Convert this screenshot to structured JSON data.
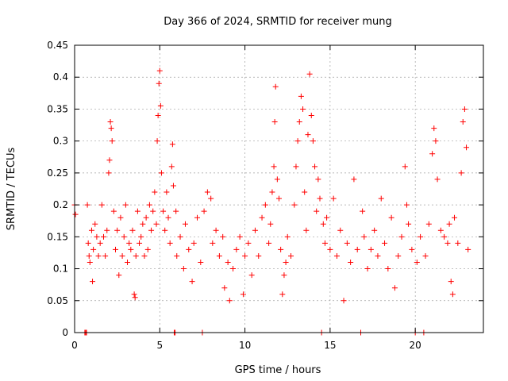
{
  "chart_data": {
    "type": "scatter",
    "title": "Day 366 of 2024, SRMTID for receiver mung",
    "xlabel": "GPS time / hours",
    "ylabel": "SRMTID / TECUs",
    "xlim": [
      0,
      24
    ],
    "ylim": [
      0,
      0.45
    ],
    "x_ticks": [
      0,
      5,
      10,
      15,
      20
    ],
    "x_tick_labels": [
      "0",
      "5",
      "10",
      "15",
      "20"
    ],
    "y_ticks": [
      0,
      0.05,
      0.1,
      0.15,
      0.2,
      0.25,
      0.3,
      0.35,
      0.4,
      0.45
    ],
    "y_tick_labels": [
      "0",
      "0.05",
      "0.1",
      "0.15",
      "0.2",
      "0.25",
      "0.3",
      "0.35",
      "0.4",
      "0.45"
    ],
    "grid": true,
    "marker": "+",
    "series_color": "#ff0000",
    "series": [
      {
        "name": "SRMTID",
        "points": [
          [
            0.0,
            0.2
          ],
          [
            0.05,
            0.185
          ],
          [
            0.6,
            0.0
          ],
          [
            0.65,
            0.0
          ],
          [
            0.7,
            0.0
          ],
          [
            0.75,
            0.2
          ],
          [
            0.8,
            0.14
          ],
          [
            0.85,
            0.12
          ],
          [
            0.9,
            0.11
          ],
          [
            1.0,
            0.16
          ],
          [
            1.05,
            0.08
          ],
          [
            1.1,
            0.13
          ],
          [
            1.2,
            0.17
          ],
          [
            1.3,
            0.15
          ],
          [
            1.4,
            0.12
          ],
          [
            1.5,
            0.14
          ],
          [
            1.6,
            0.2
          ],
          [
            1.7,
            0.15
          ],
          [
            1.8,
            0.12
          ],
          [
            1.9,
            0.16
          ],
          [
            2.0,
            0.25
          ],
          [
            2.05,
            0.27
          ],
          [
            2.1,
            0.33
          ],
          [
            2.15,
            0.32
          ],
          [
            2.2,
            0.3
          ],
          [
            2.3,
            0.19
          ],
          [
            2.4,
            0.13
          ],
          [
            2.5,
            0.16
          ],
          [
            2.6,
            0.09
          ],
          [
            2.7,
            0.18
          ],
          [
            2.8,
            0.12
          ],
          [
            2.9,
            0.15
          ],
          [
            3.0,
            0.2
          ],
          [
            3.1,
            0.11
          ],
          [
            3.2,
            0.14
          ],
          [
            3.3,
            0.13
          ],
          [
            3.4,
            0.16
          ],
          [
            3.5,
            0.06
          ],
          [
            3.55,
            0.055
          ],
          [
            3.6,
            0.12
          ],
          [
            3.7,
            0.19
          ],
          [
            3.8,
            0.14
          ],
          [
            3.9,
            0.15
          ],
          [
            4.0,
            0.17
          ],
          [
            4.1,
            0.12
          ],
          [
            4.2,
            0.18
          ],
          [
            4.3,
            0.13
          ],
          [
            4.4,
            0.2
          ],
          [
            4.5,
            0.16
          ],
          [
            4.6,
            0.19
          ],
          [
            4.7,
            0.22
          ],
          [
            4.8,
            0.17
          ],
          [
            4.85,
            0.3
          ],
          [
            4.9,
            0.34
          ],
          [
            4.95,
            0.39
          ],
          [
            5.0,
            0.41
          ],
          [
            5.05,
            0.355
          ],
          [
            5.1,
            0.25
          ],
          [
            5.2,
            0.19
          ],
          [
            5.3,
            0.16
          ],
          [
            5.4,
            0.22
          ],
          [
            5.5,
            0.18
          ],
          [
            5.6,
            0.14
          ],
          [
            5.7,
            0.26
          ],
          [
            5.75,
            0.295
          ],
          [
            5.8,
            0.23
          ],
          [
            5.85,
            0.0
          ],
          [
            5.9,
            0.0
          ],
          [
            5.95,
            0.19
          ],
          [
            6.0,
            0.12
          ],
          [
            6.2,
            0.15
          ],
          [
            6.4,
            0.1
          ],
          [
            6.5,
            0.17
          ],
          [
            6.7,
            0.13
          ],
          [
            6.9,
            0.08
          ],
          [
            7.0,
            0.14
          ],
          [
            7.2,
            0.18
          ],
          [
            7.4,
            0.11
          ],
          [
            7.5,
            0.0
          ],
          [
            7.6,
            0.19
          ],
          [
            7.8,
            0.22
          ],
          [
            8.0,
            0.21
          ],
          [
            8.1,
            0.14
          ],
          [
            8.3,
            0.16
          ],
          [
            8.5,
            0.12
          ],
          [
            8.7,
            0.15
          ],
          [
            8.8,
            0.07
          ],
          [
            9.0,
            0.11
          ],
          [
            9.1,
            0.05
          ],
          [
            9.3,
            0.1
          ],
          [
            9.5,
            0.13
          ],
          [
            9.7,
            0.15
          ],
          [
            9.9,
            0.06
          ],
          [
            10.0,
            0.12
          ],
          [
            10.2,
            0.14
          ],
          [
            10.4,
            0.09
          ],
          [
            10.6,
            0.16
          ],
          [
            10.8,
            0.12
          ],
          [
            11.0,
            0.18
          ],
          [
            11.2,
            0.2
          ],
          [
            11.4,
            0.14
          ],
          [
            11.5,
            0.17
          ],
          [
            11.6,
            0.22
          ],
          [
            11.7,
            0.26
          ],
          [
            11.75,
            0.33
          ],
          [
            11.8,
            0.385
          ],
          [
            11.9,
            0.24
          ],
          [
            12.0,
            0.21
          ],
          [
            12.1,
            0.13
          ],
          [
            12.2,
            0.06
          ],
          [
            12.3,
            0.09
          ],
          [
            12.4,
            0.11
          ],
          [
            12.5,
            0.15
          ],
          [
            12.7,
            0.12
          ],
          [
            12.9,
            0.2
          ],
          [
            13.0,
            0.26
          ],
          [
            13.1,
            0.3
          ],
          [
            13.2,
            0.33
          ],
          [
            13.3,
            0.37
          ],
          [
            13.4,
            0.35
          ],
          [
            13.5,
            0.22
          ],
          [
            13.6,
            0.16
          ],
          [
            13.7,
            0.31
          ],
          [
            13.8,
            0.405
          ],
          [
            13.9,
            0.34
          ],
          [
            14.0,
            0.3
          ],
          [
            14.1,
            0.26
          ],
          [
            14.2,
            0.19
          ],
          [
            14.3,
            0.24
          ],
          [
            14.4,
            0.21
          ],
          [
            14.5,
            0.0
          ],
          [
            14.6,
            0.17
          ],
          [
            14.7,
            0.14
          ],
          [
            14.8,
            0.18
          ],
          [
            15.0,
            0.13
          ],
          [
            15.2,
            0.21
          ],
          [
            15.4,
            0.12
          ],
          [
            15.6,
            0.16
          ],
          [
            15.8,
            0.05
          ],
          [
            16.0,
            0.14
          ],
          [
            16.2,
            0.11
          ],
          [
            16.4,
            0.24
          ],
          [
            16.6,
            0.13
          ],
          [
            16.8,
            0.0
          ],
          [
            16.9,
            0.19
          ],
          [
            17.0,
            0.15
          ],
          [
            17.2,
            0.1
          ],
          [
            17.4,
            0.13
          ],
          [
            17.6,
            0.16
          ],
          [
            17.8,
            0.12
          ],
          [
            18.0,
            0.21
          ],
          [
            18.2,
            0.14
          ],
          [
            18.4,
            0.1
          ],
          [
            18.6,
            0.18
          ],
          [
            18.8,
            0.07
          ],
          [
            19.0,
            0.12
          ],
          [
            19.2,
            0.15
          ],
          [
            19.4,
            0.26
          ],
          [
            19.5,
            0.2
          ],
          [
            19.6,
            0.17
          ],
          [
            19.8,
            0.13
          ],
          [
            20.0,
            0.0
          ],
          [
            20.1,
            0.11
          ],
          [
            20.3,
            0.15
          ],
          [
            20.5,
            0.0
          ],
          [
            20.6,
            0.12
          ],
          [
            20.8,
            0.17
          ],
          [
            21.0,
            0.28
          ],
          [
            21.1,
            0.32
          ],
          [
            21.2,
            0.3
          ],
          [
            21.3,
            0.24
          ],
          [
            21.5,
            0.16
          ],
          [
            21.7,
            0.15
          ],
          [
            21.9,
            0.14
          ],
          [
            22.0,
            0.17
          ],
          [
            22.1,
            0.08
          ],
          [
            22.2,
            0.06
          ],
          [
            22.3,
            0.18
          ],
          [
            22.5,
            0.14
          ],
          [
            22.7,
            0.25
          ],
          [
            22.8,
            0.33
          ],
          [
            22.9,
            0.35
          ],
          [
            23.0,
            0.29
          ],
          [
            23.1,
            0.13
          ]
        ]
      }
    ]
  }
}
